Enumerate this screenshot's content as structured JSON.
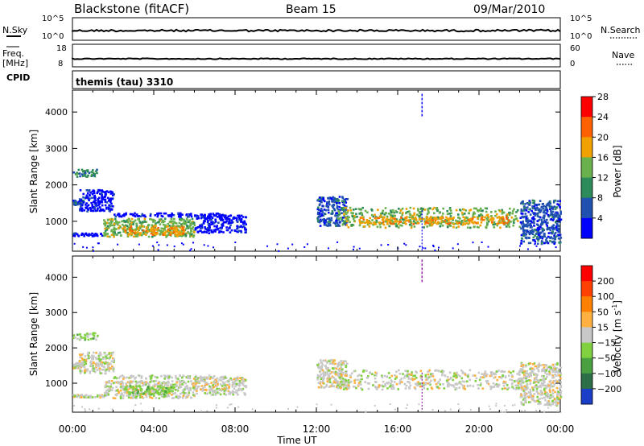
{
  "header": {
    "station": "Blackstone (fitACF)",
    "beam": "Beam 15",
    "date": "09/Mar/2010"
  },
  "panels": {
    "noise": {
      "left_label": "N.Sky",
      "left_ticks": [
        "10^5",
        "10^0"
      ],
      "right_ticks": [
        "10^5",
        "10^0"
      ],
      "right_label": "N.Search"
    },
    "freq": {
      "left_label_line1": "Freq.",
      "left_label_line2": "[MHz]",
      "left_ticks": [
        "18",
        "8"
      ],
      "right_ticks": [
        "60",
        "0"
      ],
      "right_label": "Nave"
    },
    "cpid": {
      "left_label": "CPID",
      "program": "themis (tau) 3310"
    }
  },
  "chart_data": [
    {
      "type": "heatmap",
      "name": "power",
      "ylabel": "Slant Range [km]",
      "xlabel": "Time UT",
      "y_ticks": [
        1000,
        2000,
        3000,
        4000
      ],
      "ylim": [
        180,
        4600
      ],
      "x_ticks": [
        "00:00",
        "04:00",
        "08:00",
        "12:00",
        "16:00",
        "20:00",
        "00:00"
      ],
      "xlim_hours": [
        0,
        24
      ],
      "colorbar": {
        "label": "Power [dB]",
        "ticks": [
          "4",
          "8",
          "12",
          "16",
          "20",
          "24",
          "28"
        ],
        "colors": [
          "#0000ff",
          "#2050b0",
          "#2d8a5a",
          "#6ab04c",
          "#f0a000",
          "#ff6000",
          "#ff0000"
        ]
      },
      "echo_regions": [
        {
          "t0": 0.0,
          "t1": 1.2,
          "r0": 2250,
          "r1": 2450,
          "level": 2
        },
        {
          "t0": 0.0,
          "t1": 0.5,
          "r0": 1450,
          "r1": 1600,
          "level": 1
        },
        {
          "t0": 0.3,
          "t1": 2.0,
          "r0": 1300,
          "r1": 1900,
          "level": 0
        },
        {
          "t0": 0.0,
          "t1": 1.5,
          "r0": 620,
          "r1": 700,
          "level": 0
        },
        {
          "t0": 1.5,
          "t1": 6.0,
          "r0": 600,
          "r1": 1100,
          "level": 3
        },
        {
          "t0": 2.5,
          "t1": 5.5,
          "r0": 650,
          "r1": 900,
          "level": 4
        },
        {
          "t0": 2.0,
          "t1": 7.5,
          "r0": 1150,
          "r1": 1250,
          "level": 0
        },
        {
          "t0": 6.0,
          "t1": 8.5,
          "r0": 700,
          "r1": 1200,
          "level": 0
        },
        {
          "t0": 12.0,
          "t1": 13.5,
          "r0": 900,
          "r1": 1700,
          "level": 1
        },
        {
          "t0": 13.0,
          "t1": 22.0,
          "r0": 850,
          "r1": 1400,
          "level": 3
        },
        {
          "t0": 14.0,
          "t1": 21.5,
          "r0": 950,
          "r1": 1150,
          "level": 4
        },
        {
          "t0": 22.0,
          "t1": 24.0,
          "r0": 400,
          "r1": 1600,
          "level": 1
        }
      ],
      "spike_t": 17.2
    },
    {
      "type": "heatmap",
      "name": "velocity",
      "ylabel": "Slant Range [km]",
      "xlabel": "Time UT",
      "y_ticks": [
        1000,
        2000,
        3000,
        4000
      ],
      "ylim": [
        180,
        4600
      ],
      "x_ticks": [
        "00:00",
        "04:00",
        "08:00",
        "12:00",
        "16:00",
        "20:00",
        "00:00"
      ],
      "xlim_hours": [
        0,
        24
      ],
      "colorbar": {
        "label": "Velocity [m s",
        "label_sup": "-1",
        "ticks": [
          "200",
          "100",
          "50",
          "15",
          "−15",
          "−50",
          "−100",
          "−200"
        ],
        "colors": [
          "#1a3ec8",
          "#2c6e48",
          "#48a040",
          "#80d040",
          "#c8c8c8",
          "#ffb040",
          "#ff8000",
          "#ff4000",
          "#ff0000"
        ]
      },
      "echo_regions": [
        {
          "t0": 0.0,
          "t1": 1.2,
          "r0": 2250,
          "r1": 2450,
          "level": 3
        },
        {
          "t0": 0.0,
          "t1": 0.5,
          "r0": 1450,
          "r1": 1600,
          "level": 4
        },
        {
          "t0": 0.3,
          "t1": 2.0,
          "r0": 1300,
          "r1": 1900,
          "level": 4
        },
        {
          "t0": 0.0,
          "t1": 1.5,
          "r0": 620,
          "r1": 700,
          "level": 4
        },
        {
          "t0": 1.5,
          "t1": 6.0,
          "r0": 600,
          "r1": 1100,
          "level": 4
        },
        {
          "t0": 2.5,
          "t1": 5.0,
          "r0": 700,
          "r1": 950,
          "level": 3
        },
        {
          "t0": 2.0,
          "t1": 7.5,
          "r0": 1150,
          "r1": 1250,
          "level": 4
        },
        {
          "t0": 6.0,
          "t1": 8.5,
          "r0": 700,
          "r1": 1200,
          "level": 4
        },
        {
          "t0": 12.0,
          "t1": 13.5,
          "r0": 900,
          "r1": 1700,
          "level": 4
        },
        {
          "t0": 13.0,
          "t1": 22.0,
          "r0": 850,
          "r1": 1400,
          "level": 4
        },
        {
          "t0": 22.0,
          "t1": 24.0,
          "r0": 400,
          "r1": 1600,
          "level": 4
        }
      ],
      "spike_t": 17.2
    }
  ]
}
